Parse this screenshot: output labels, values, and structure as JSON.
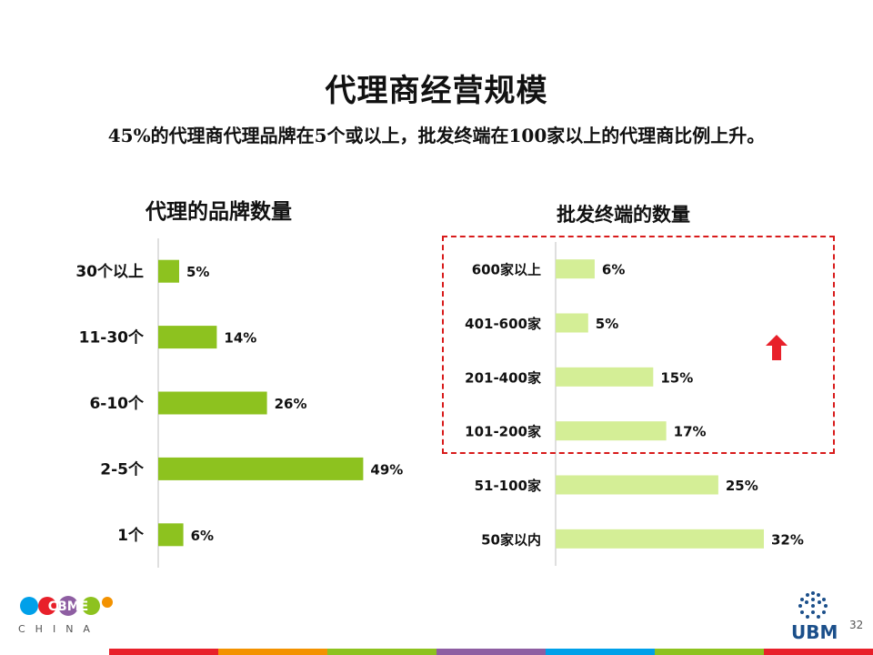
{
  "title": "代理商经营规模",
  "subtitle_prefix": "45%",
  "subtitle_mid": "的代理商代理品牌在",
  "subtitle_num": "5",
  "subtitle_mid2": "个或以上，批发终端在",
  "subtitle_num2": "100",
  "subtitle_end": "家以上的代理商比例上升。",
  "logo": {
    "text": "CBME",
    "sub": "CHINA"
  },
  "brand_right": "UBM",
  "page_number": "32",
  "colors": {
    "left_bar": "#8dc21f",
    "right_bar": "#d4ee96",
    "highlight": "#d81b1b",
    "arrow": "#e8202a",
    "footer": [
      "#e8202a",
      "#f39200",
      "#8dc21f",
      "#8e5ea2",
      "#00a0e9",
      "#8dc21f",
      "#e8202a"
    ]
  },
  "chart_data": [
    {
      "type": "bar",
      "orientation": "horizontal",
      "title": "代理的品牌数量",
      "categories": [
        "30个以上",
        "11-30个",
        "6-10个",
        "2-5个",
        "1个"
      ],
      "values": [
        5,
        14,
        26,
        49,
        6
      ],
      "value_labels": [
        "5%",
        "14%",
        "26%",
        "49%",
        "6%"
      ],
      "xlim": [
        0,
        55
      ],
      "grid": false,
      "legend": "none"
    },
    {
      "type": "bar",
      "orientation": "horizontal",
      "title": "批发终端的数量",
      "categories": [
        "600家以上",
        "401-600家",
        "201-400家",
        "101-200家",
        "51-100家",
        "50家以内"
      ],
      "values": [
        6,
        5,
        15,
        17,
        25,
        32
      ],
      "value_labels": [
        "6%",
        "5%",
        "15%",
        "17%",
        "25%",
        "32%"
      ],
      "xlim": [
        0,
        45
      ],
      "grid": false,
      "legend": "none",
      "highlighted_categories": [
        "600家以上",
        "401-600家",
        "201-400家",
        "101-200家"
      ]
    }
  ]
}
